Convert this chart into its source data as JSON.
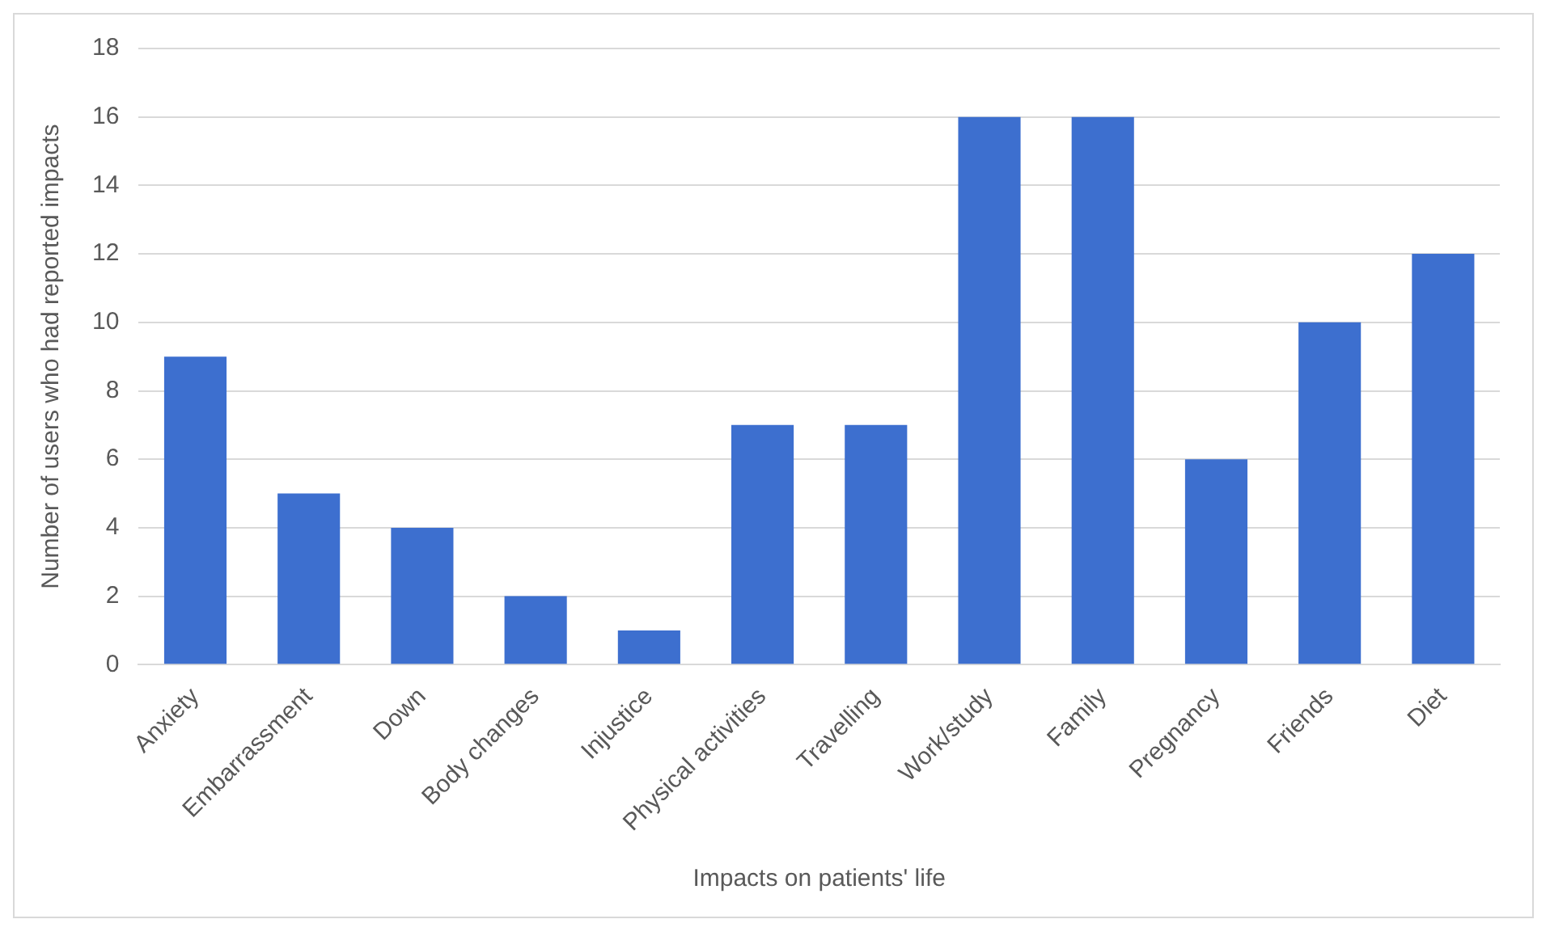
{
  "chart_data": {
    "type": "bar",
    "xlabel": "Impacts on patients' life",
    "ylabel": "Number of users who had reported impacts",
    "categories": [
      "Anxiety",
      "Embarrassment",
      "Down",
      "Body changes",
      "Injustice",
      "Physical activities",
      "Travelling",
      "Work/study",
      "Family",
      "Pregnancy",
      "Friends",
      "Diet"
    ],
    "values": [
      9,
      5,
      4,
      2,
      1,
      7,
      7,
      16,
      16,
      6,
      10,
      12
    ],
    "color": "#3d6fcf",
    "ylim": [
      0,
      18
    ],
    "yticks": [
      0,
      2,
      4,
      6,
      8,
      10,
      12,
      14,
      16,
      18
    ],
    "grid": "y"
  }
}
